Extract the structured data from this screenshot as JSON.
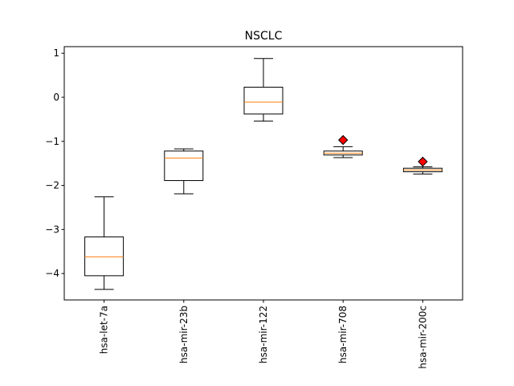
{
  "chart_data": {
    "type": "box",
    "title": "NSCLC",
    "xlabel": "",
    "ylabel": "",
    "ylim": [
      -4.6,
      1.15
    ],
    "yticks": [
      1,
      0,
      -1,
      -2,
      -3,
      -4
    ],
    "ytick_labels": [
      "1",
      "0",
      "−1",
      "−2",
      "−3",
      "−4"
    ],
    "grid": false,
    "legend": "none",
    "categories": [
      "hsa-let-7a",
      "hsa-mir-23b",
      "hsa-mir-122",
      "hsa-mir-708",
      "hsa-mir-200c"
    ],
    "boxes": [
      {
        "label": "hsa-let-7a",
        "whisker_low": -4.36,
        "q1": -4.05,
        "median": -3.62,
        "q3": -3.17,
        "whisker_high": -2.26,
        "outliers": []
      },
      {
        "label": "hsa-mir-23b",
        "whisker_low": -2.19,
        "q1": -1.89,
        "median": -1.38,
        "q3": -1.22,
        "whisker_high": -1.17,
        "outliers": []
      },
      {
        "label": "hsa-mir-122",
        "whisker_low": -0.54,
        "q1": -0.38,
        "median": -0.11,
        "q3": 0.23,
        "whisker_high": 0.88,
        "outliers": []
      },
      {
        "label": "hsa-mir-708",
        "whisker_low": -1.37,
        "q1": -1.31,
        "median": -1.27,
        "q3": -1.22,
        "whisker_high": -1.12,
        "outliers": [
          -0.97
        ]
      },
      {
        "label": "hsa-mir-200c",
        "whisker_low": -1.74,
        "q1": -1.69,
        "median": -1.65,
        "q3": -1.61,
        "whisker_high": -1.58,
        "outliers": [
          -1.46
        ]
      }
    ],
    "colors": {
      "box_edge": "#000000",
      "median": "#ff7f0e",
      "outlier_fill": "#ff0000",
      "outlier_edge": "#000000",
      "axes": "#000000",
      "background": "#ffffff"
    },
    "outlier_marker": "diamond"
  }
}
